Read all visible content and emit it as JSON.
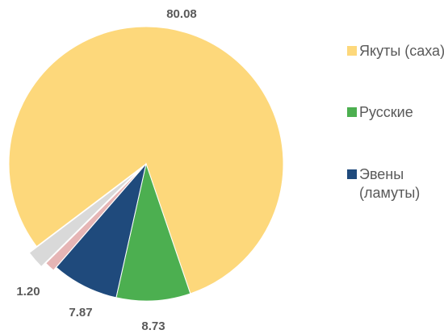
{
  "chart_data": {
    "type": "pie",
    "categories": [
      "Якуты (саха)",
      "Русские",
      "Эвены (ламуты)",
      null,
      null
    ],
    "values": [
      80.08,
      8.73,
      7.87,
      1.2,
      2.12
    ],
    "value_labels": [
      "80.08",
      "8.73",
      "7.87",
      "1.20",
      null
    ],
    "colors": [
      "#fdd87b",
      "#4caf50",
      "#1f4a7c",
      "#e6b5b5",
      "#d9d9d9"
    ],
    "legend": "right"
  }
}
